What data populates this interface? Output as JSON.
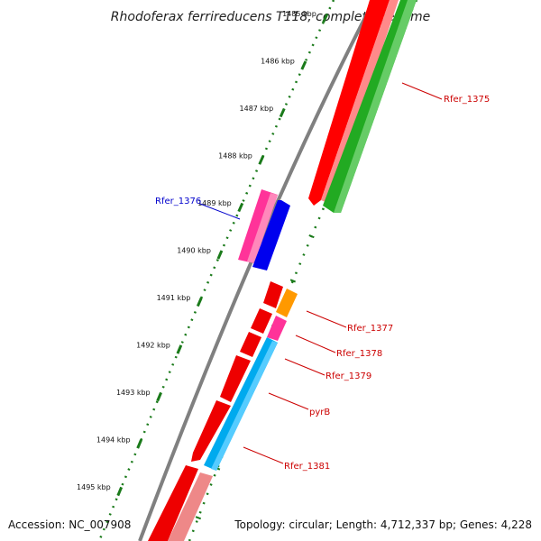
{
  "title": "Rhodoferax ferrireducens T118, complete genome",
  "footer": {
    "accession": "Accession: NC_007908",
    "topology": "Topology: circular; Length: 4,712,337 bp; Genes: 4,228"
  },
  "colors": {
    "backbone": "#808080",
    "ticks": "#1a7a1a",
    "label_red": "#cc0000",
    "label_blue": "#0000cc"
  },
  "ruler": {
    "ticks": [
      {
        "label": "1485 kbp",
        "faded": true
      },
      {
        "label": "1486 kbp"
      },
      {
        "label": "1487 kbp"
      },
      {
        "label": "1488 kbp"
      },
      {
        "label": "1489 kbp"
      },
      {
        "label": "1490 kbp"
      },
      {
        "label": "1491 kbp"
      },
      {
        "label": "1492 kbp"
      },
      {
        "label": "1493 kbp"
      },
      {
        "label": "1494 kbp"
      },
      {
        "label": "1495 kbp"
      }
    ]
  },
  "gene_labels": [
    {
      "text": "Rfer_1375",
      "color": "#cc0000"
    },
    {
      "text": "Rfer_1376",
      "color": "#0000cc"
    },
    {
      "text": "Rfer_1377",
      "color": "#cc0000"
    },
    {
      "text": "Rfer_1378",
      "color": "#cc0000"
    },
    {
      "text": "Rfer_1379",
      "color": "#cc0000"
    },
    {
      "text": "pyrB",
      "color": "#cc0000"
    },
    {
      "text": "Rfer_1381",
      "color": "#cc0000"
    }
  ]
}
